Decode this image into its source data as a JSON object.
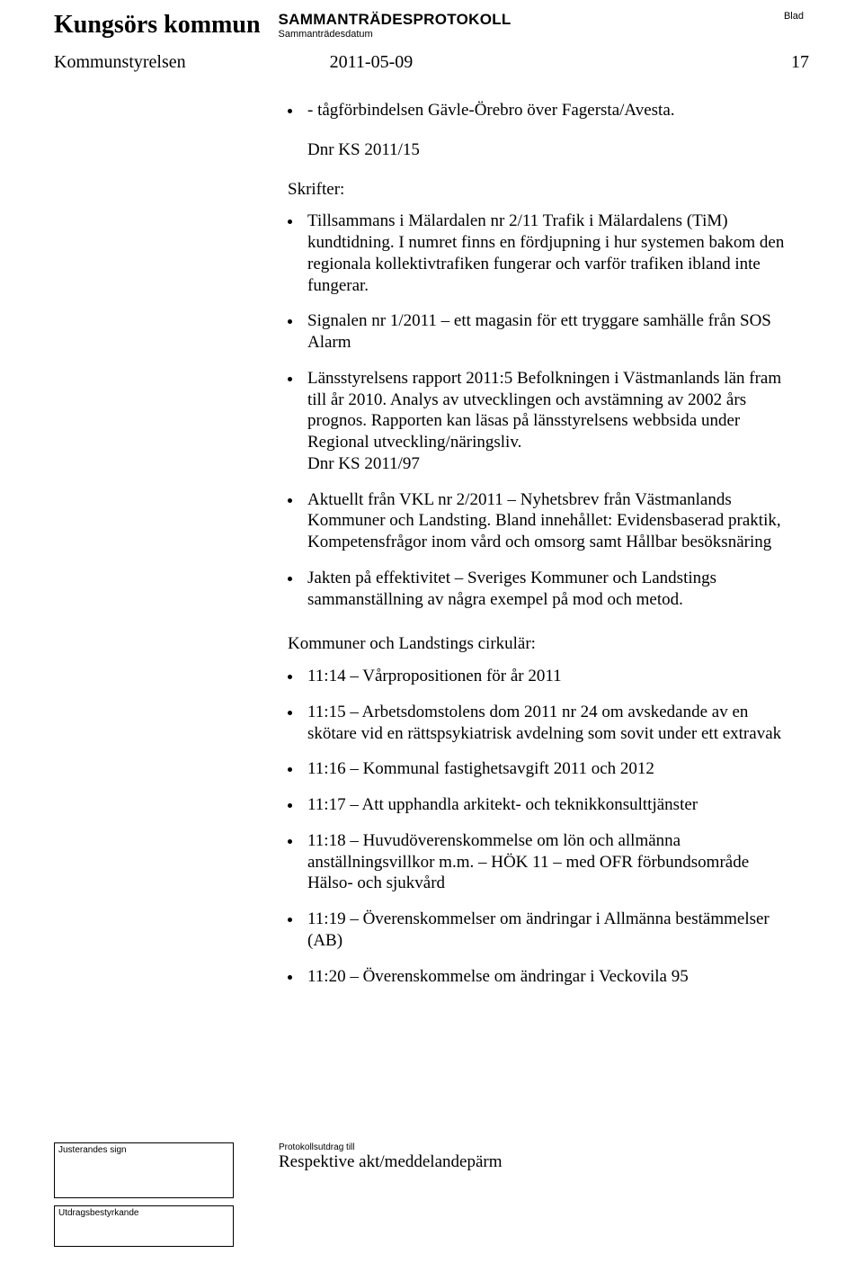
{
  "header": {
    "org": "Kungsörs kommun",
    "protokoll_title": "SAMMANTRÄDESPROTOKOLL",
    "sammantrade": "Sammanträdesdatum",
    "blad": "Blad",
    "board": "Kommunstyrelsen",
    "date": "2011-05-09",
    "page": "17"
  },
  "lead": {
    "text": "- tågförbindelsen Gävle-Örebro över Fagersta/Avesta.",
    "dnr": "Dnr KS 2011/15"
  },
  "skrifter": {
    "title": "Skrifter:",
    "items": [
      "Tillsammans i Mälardalen nr 2/11 Trafik i Mälardalens (TiM) kundtidning. I numret finns en fördjupning i hur systemen bakom den regionala kollektivtrafiken fungerar och varför trafiken ibland inte fungerar.",
      "Signalen nr 1/2011 – ett magasin för ett tryggare samhälle från SOS Alarm",
      "Länsstyrelsens rapport 2011:5 Befolkningen i Västmanlands län fram till år 2010. Analys av utvecklingen och avstämning av 2002 års prognos. Rapporten kan läsas på länsstyrelsens webbsida under Regional utveckling/näringsliv.\nDnr KS 2011/97",
      "Aktuellt från VKL nr 2/2011 – Nyhetsbrev från Västmanlands Kommuner och Landsting. Bland innehållet: Evidensbaserad praktik, Kompetensfrågor inom vård och omsorg samt Hållbar besöksnäring",
      "Jakten på effektivitet – Sveriges Kommuner och Landstings sammanställning av några exempel på mod och metod."
    ]
  },
  "cirkular": {
    "title": "Kommuner och Landstings cirkulär:",
    "items": [
      "11:14 – Vårpropositionen för år 2011",
      "11:15 – Arbetsdomstolens dom 2011 nr 24 om avskedande av en skötare vid en rättspsykiatrisk avdelning som sovit under ett extravak",
      "11:16 – Kommunal fastighetsavgift 2011 och 2012",
      "11:17 – Att upphandla arkitekt- och teknikkonsulttjänster",
      "11:18 – Huvudöverenskommelse om lön och allmänna anställningsvillkor m.m. – HÖK 11 – med OFR förbundsområde Hälso- och sjukvård",
      "11:19 – Överenskommelser om ändringar i Allmänna bestämmelser (AB)",
      "11:20 – Överenskommelse om ändringar i Veckovila 95"
    ]
  },
  "footer": {
    "justerande": "Justerandes sign",
    "protokoll_cap": "Protokollsutdrag till",
    "protokoll_text": "Respektive akt/meddelandepärm",
    "utdrag": "Utdragsbestyrkande"
  }
}
